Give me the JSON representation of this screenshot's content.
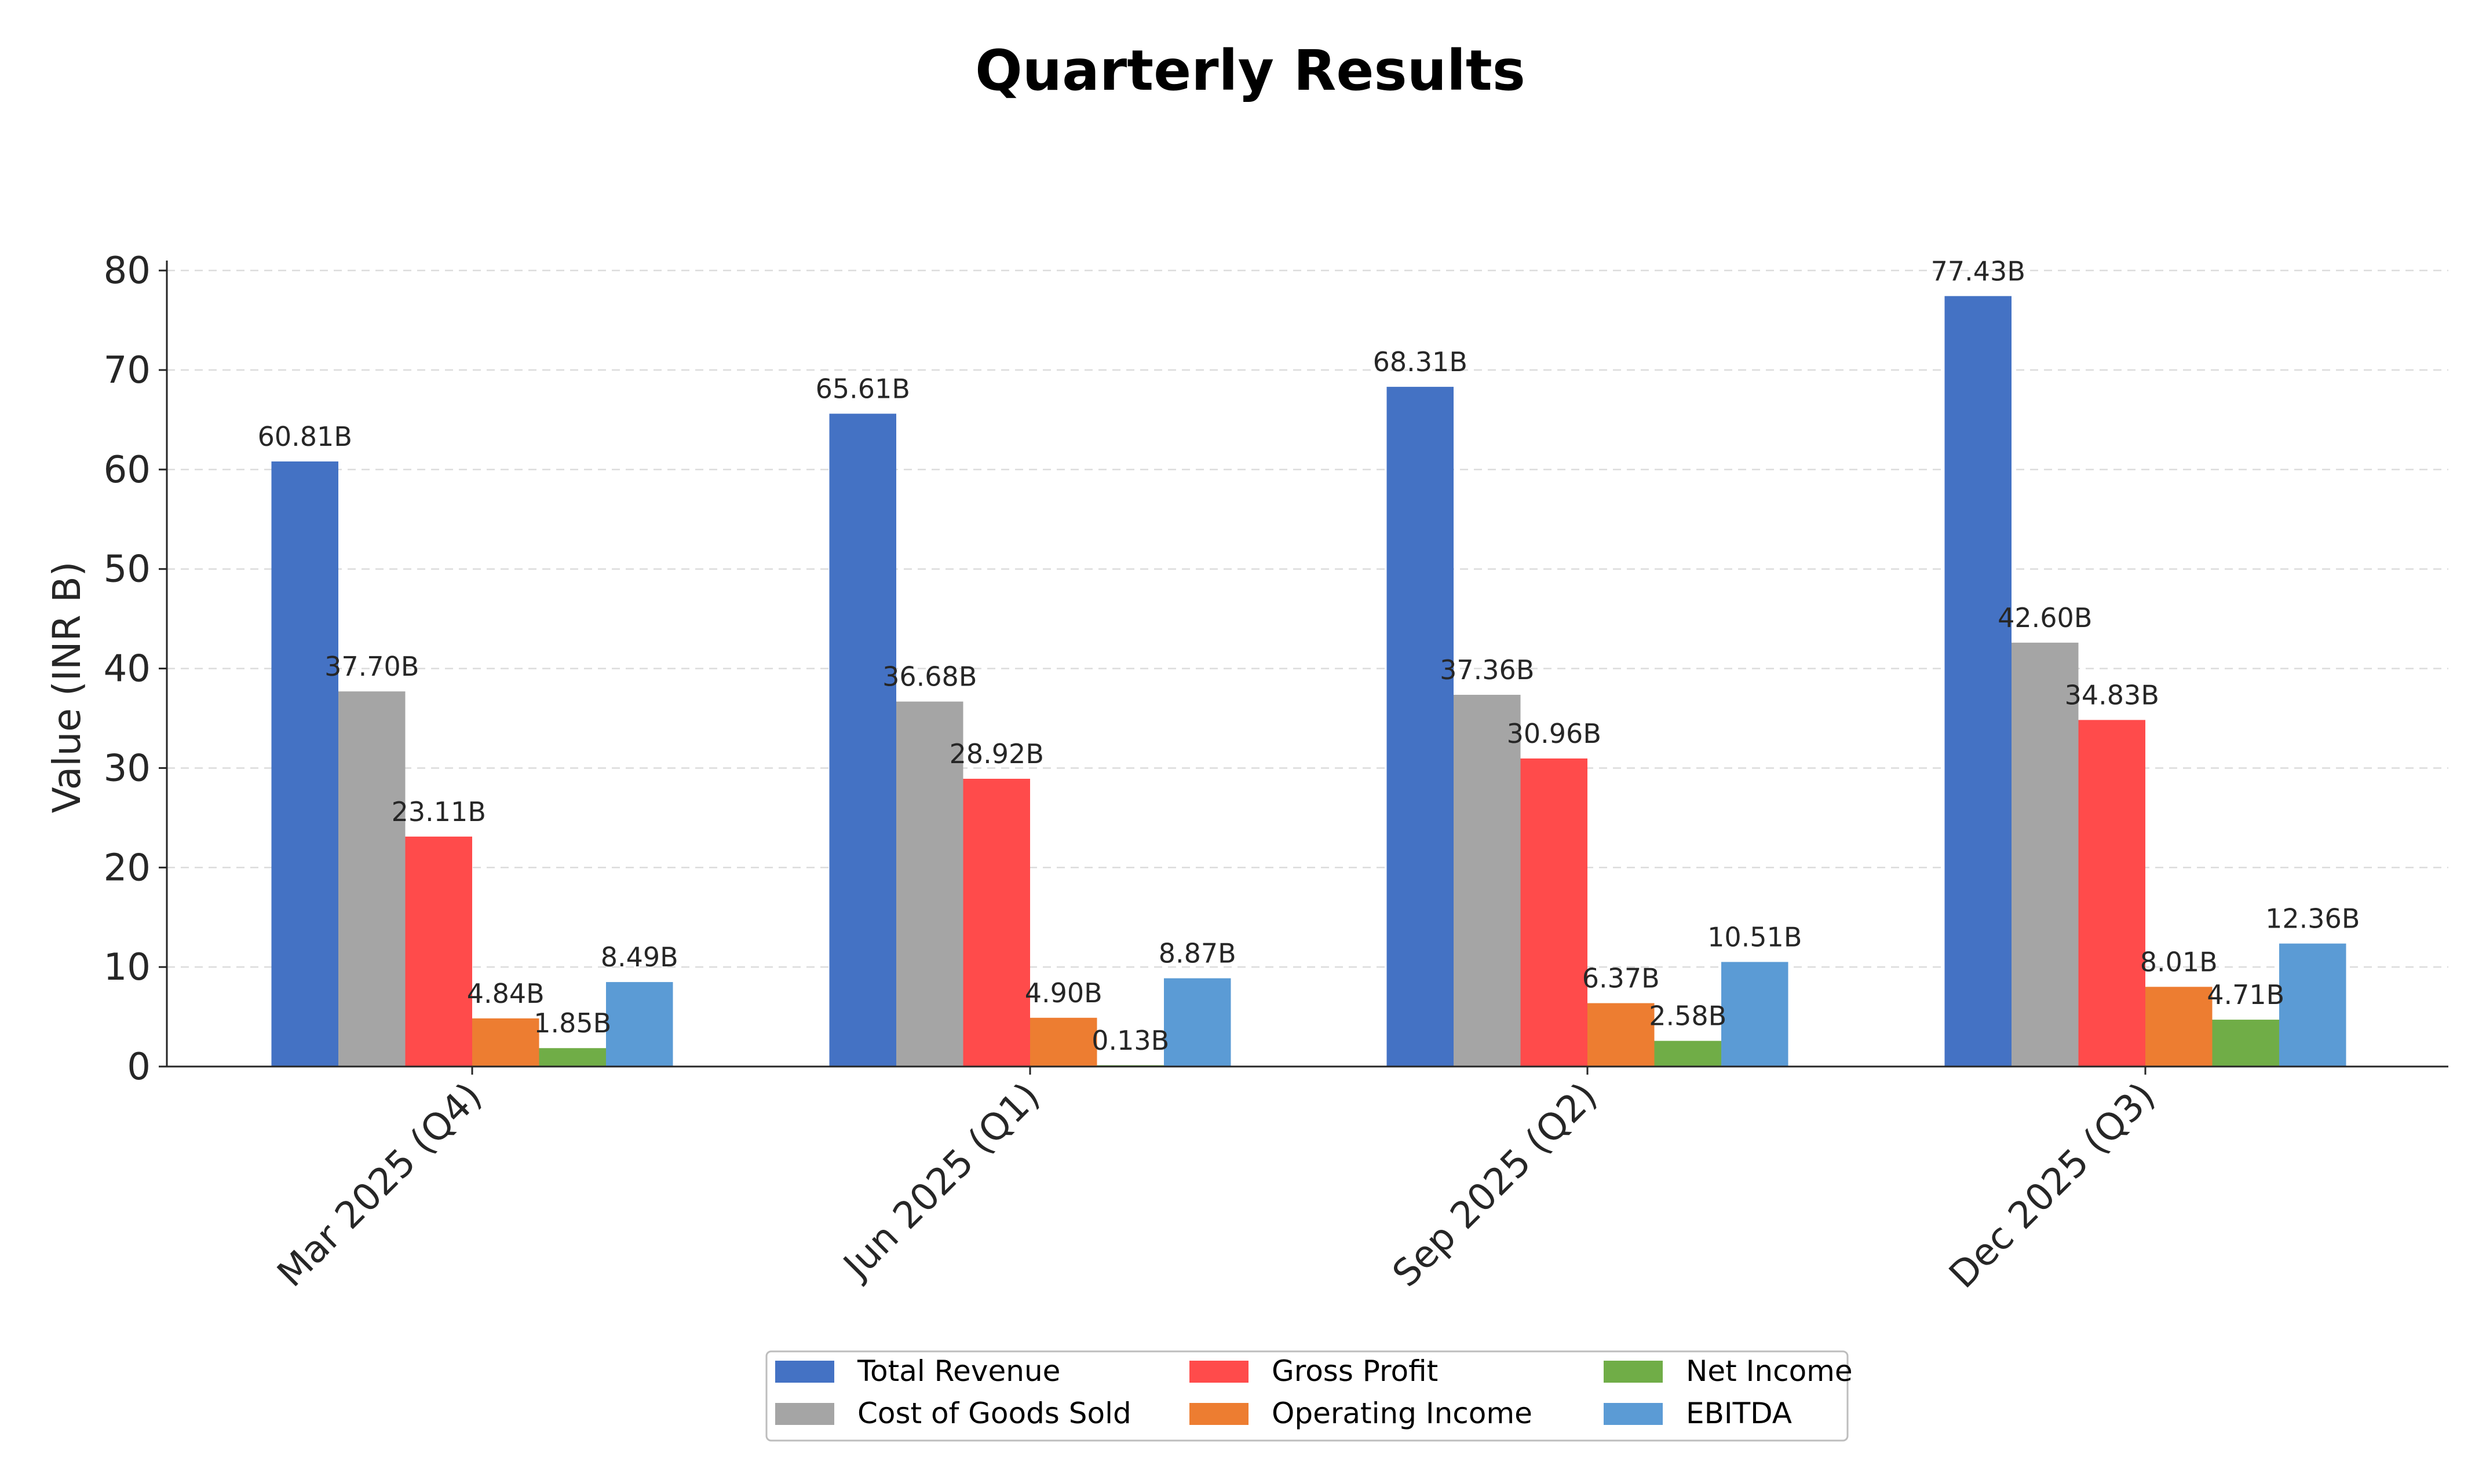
{
  "chart_data": {
    "type": "bar",
    "title": "Quarterly Results",
    "xlabel": "",
    "ylabel": "Value (INR B)",
    "ylim": [
      0,
      81
    ],
    "yticks": [
      0,
      10,
      20,
      30,
      40,
      50,
      60,
      70,
      80
    ],
    "grid": "y-dashed",
    "legend_position": "bottom-center",
    "categories": [
      "Mar 2025 (Q4)",
      "Jun 2025 (Q1)",
      "Sep 2025 (Q2)",
      "Dec 2025 (Q3)"
    ],
    "series": [
      {
        "name": "Total Revenue",
        "color": "#4472C4",
        "values": [
          60.81,
          65.61,
          68.31,
          77.43
        ],
        "labels": [
          "60.81B",
          "65.61B",
          "68.31B",
          "77.43B"
        ]
      },
      {
        "name": "Cost of Goods Sold",
        "color": "#A5A5A5",
        "values": [
          37.7,
          36.68,
          37.36,
          42.6
        ],
        "labels": [
          "37.70B",
          "36.68B",
          "37.36B",
          "42.60B"
        ]
      },
      {
        "name": "Gross Profit",
        "color": "#FF4B4B",
        "values": [
          23.11,
          28.92,
          30.96,
          34.83
        ],
        "labels": [
          "23.11B",
          "28.92B",
          "30.96B",
          "34.83B"
        ]
      },
      {
        "name": "Operating Income",
        "color": "#ED7D31",
        "values": [
          4.84,
          4.9,
          6.37,
          8.01
        ],
        "labels": [
          "4.84B",
          "4.90B",
          "6.37B",
          "8.01B"
        ]
      },
      {
        "name": "Net Income",
        "color": "#70AD47",
        "values": [
          1.85,
          0.13,
          2.58,
          4.71
        ],
        "labels": [
          "1.85B",
          "0.13B",
          "2.58B",
          "4.71B"
        ]
      },
      {
        "name": "EBITDA",
        "color": "#5B9BD5",
        "values": [
          8.49,
          8.87,
          10.51,
          12.36
        ],
        "labels": [
          "8.49B",
          "8.87B",
          "10.51B",
          "12.36B"
        ]
      }
    ]
  }
}
